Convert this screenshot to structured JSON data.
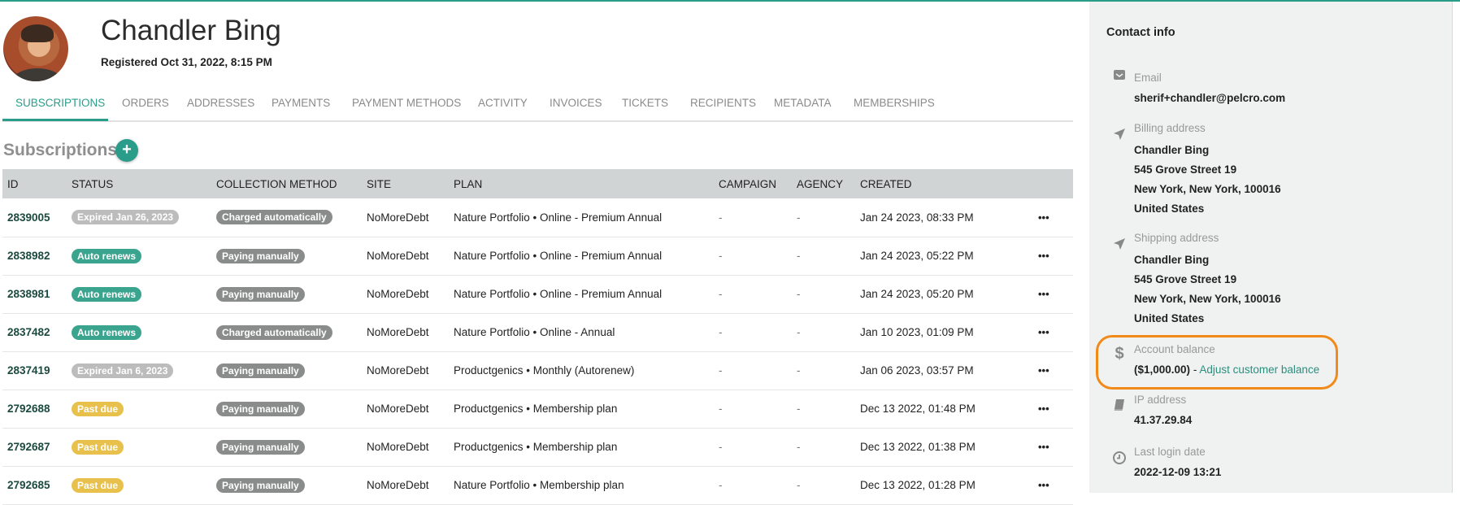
{
  "profile": {
    "name": "Chandler Bing",
    "registered": "Registered Oct 31, 2022, 8:15 PM"
  },
  "tabs": [
    {
      "label": "SUBSCRIPTIONS",
      "active": true
    },
    {
      "label": "ORDERS"
    },
    {
      "label": "ADDRESSES"
    },
    {
      "label": "PAYMENTS"
    },
    {
      "label": "PAYMENT METHODS"
    },
    {
      "label": "ACTIVITY"
    },
    {
      "label": "INVOICES"
    },
    {
      "label": "TICKETS"
    },
    {
      "label": "RECIPIENTS"
    },
    {
      "label": "METADATA"
    },
    {
      "label": "MEMBERSHIPS"
    }
  ],
  "subscriptions": {
    "title": "Subscriptions",
    "add_label": "+",
    "columns": [
      "ID",
      "STATUS",
      "COLLECTION METHOD",
      "SITE",
      "PLAN",
      "CAMPAIGN",
      "AGENCY",
      "CREATED",
      ""
    ],
    "rows": [
      {
        "id": "2839005",
        "status": "Expired Jan 26, 2023",
        "status_type": "expired",
        "collection": "Charged automatically",
        "site": "NoMoreDebt",
        "plan": "Nature Portfolio • Online - Premium Annual",
        "campaign": "-",
        "agency": "-",
        "created": "Jan 24 2023, 08:33 PM",
        "menu": "•••"
      },
      {
        "id": "2838982",
        "status": "Auto renews",
        "status_type": "auto",
        "collection": "Paying manually",
        "site": "NoMoreDebt",
        "plan": "Nature Portfolio • Online - Premium Annual",
        "campaign": "-",
        "agency": "-",
        "created": "Jan 24 2023, 05:22 PM",
        "menu": "•••"
      },
      {
        "id": "2838981",
        "status": "Auto renews",
        "status_type": "auto",
        "collection": "Paying manually",
        "site": "NoMoreDebt",
        "plan": "Nature Portfolio • Online - Premium Annual",
        "campaign": "-",
        "agency": "-",
        "created": "Jan 24 2023, 05:20 PM",
        "menu": "•••"
      },
      {
        "id": "2837482",
        "status": "Auto renews",
        "status_type": "auto",
        "collection": "Charged automatically",
        "site": "NoMoreDebt",
        "plan": "Nature Portfolio • Online - Annual",
        "campaign": "-",
        "agency": "-",
        "created": "Jan 10 2023, 01:09 PM",
        "menu": "•••"
      },
      {
        "id": "2837419",
        "status": "Expired Jan 6, 2023",
        "status_type": "expired",
        "collection": "Paying manually",
        "site": "NoMoreDebt",
        "plan": "Productgenics • Monthly (Autorenew)",
        "campaign": "-",
        "agency": "-",
        "created": "Jan 06 2023, 03:57 PM",
        "menu": "•••"
      },
      {
        "id": "2792688",
        "status": "Past due",
        "status_type": "past",
        "collection": "Paying manually",
        "site": "NoMoreDebt",
        "plan": "Productgenics • Membership plan",
        "campaign": "-",
        "agency": "-",
        "created": "Dec 13 2022, 01:48 PM",
        "menu": "•••"
      },
      {
        "id": "2792687",
        "status": "Past due",
        "status_type": "past",
        "collection": "Paying manually",
        "site": "NoMoreDebt",
        "plan": "Productgenics • Membership plan",
        "campaign": "-",
        "agency": "-",
        "created": "Dec 13 2022, 01:38 PM",
        "menu": "•••"
      },
      {
        "id": "2792685",
        "status": "Past due",
        "status_type": "past",
        "collection": "Paying manually",
        "site": "NoMoreDebt",
        "plan": "Nature Portfolio • Membership plan",
        "campaign": "-",
        "agency": "-",
        "created": "Dec 13 2022, 01:28 PM",
        "menu": "•••"
      }
    ]
  },
  "contact": {
    "title": "Contact info",
    "email": {
      "label": "Email",
      "value": "sherif+chandler@pelcro.com",
      "icon": "envelope-icon"
    },
    "billing": {
      "label": "Billing address",
      "lines": [
        "Chandler Bing",
        "545 Grove Street 19",
        "New York, New York, 100016",
        "United States"
      ],
      "icon": "location-arrow-icon"
    },
    "shipping": {
      "label": "Shipping address",
      "lines": [
        "Chandler Bing",
        "545 Grove Street 19",
        "New York, New York, 100016",
        "United States"
      ],
      "icon": "location-arrow-icon"
    },
    "balance": {
      "label": "Account balance",
      "value": "($1,000.00)",
      "separator": " - ",
      "link": "Adjust customer balance",
      "icon": "dollar-icon"
    },
    "ip": {
      "label": "IP address",
      "value": "41.37.29.84",
      "icon": "book-icon"
    },
    "last_login": {
      "label": "Last login date",
      "value": "2022-12-09 13:21",
      "icon": "clock-icon"
    }
  },
  "colors": {
    "accent": "#2a9d8a",
    "auto": "#3aa48f",
    "expired": "#bcbcbc",
    "past_due": "#e8c14d",
    "collection": "#8a8b8b",
    "highlight": "#f28a1a"
  }
}
